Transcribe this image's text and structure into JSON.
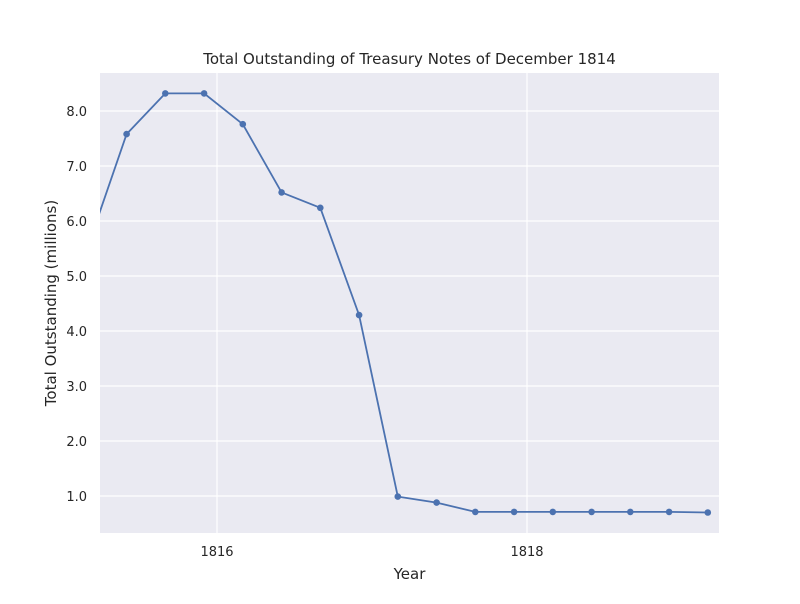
{
  "chart_data": {
    "type": "line",
    "title": "Total Outstanding of Treasury Notes of December 1814",
    "xlabel": "Year",
    "ylabel": "Total Outstanding (millions)",
    "x_ticks": [
      "1816",
      "1818"
    ],
    "y_ticks": [
      "1.0",
      "2.0",
      "3.0",
      "4.0",
      "5.0",
      "6.0",
      "7.0",
      "8.0"
    ],
    "grid": true,
    "style": {
      "background": "#eaeaf2",
      "grid_color": "#ffffff",
      "line_color": "#4c72b0"
    },
    "series": [
      {
        "x": [
          "1815-03-01",
          "1815-06-01",
          "1815-09-01",
          "1815-12-01",
          "1816-03-01",
          "1816-06-01",
          "1816-09-01",
          "1816-12-01",
          "1817-03-01",
          "1817-06-01",
          "1817-09-01",
          "1817-12-01",
          "1818-03-01",
          "1818-06-01",
          "1818-09-01",
          "1818-12-01",
          "1819-03-01"
        ],
        "y": [
          5.53,
          7.58,
          8.32,
          8.32,
          7.76,
          6.52,
          6.24,
          4.29,
          0.99,
          0.88,
          0.71,
          0.71,
          0.71,
          0.71,
          0.71,
          0.71,
          0.7
        ]
      }
    ]
  }
}
